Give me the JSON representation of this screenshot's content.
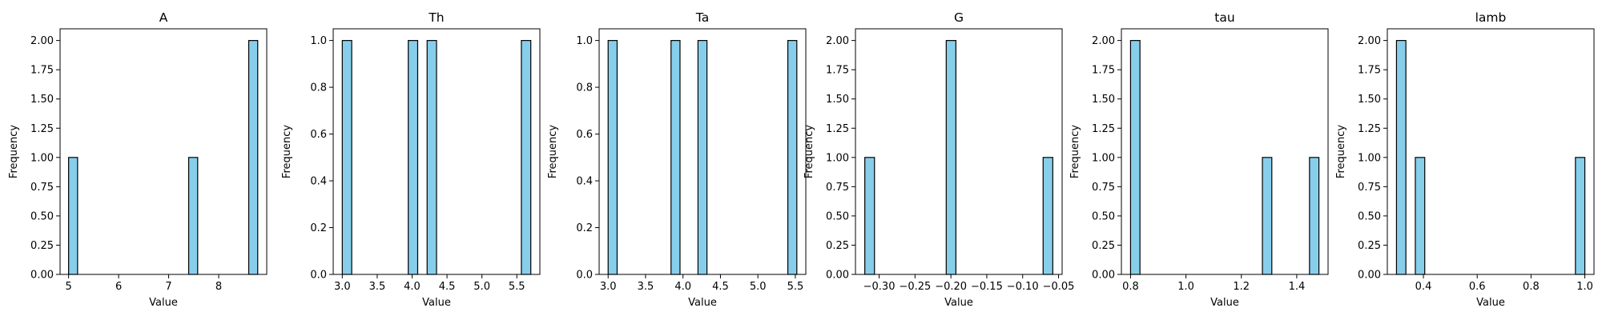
{
  "chart_data": [
    {
      "type": "bar",
      "title": "A",
      "xlabel": "Value",
      "ylabel": "Frequency",
      "bin_width": 0.18,
      "bins": [
        {
          "start": 5.0,
          "count": 1
        },
        {
          "start": 7.4,
          "count": 1
        },
        {
          "start": 8.6,
          "count": 2
        }
      ],
      "xlim": [
        4.83,
        8.96
      ],
      "ylim": [
        0,
        2.1
      ],
      "xticks": [
        {
          "value": 5,
          "label": "5"
        },
        {
          "value": 6,
          "label": "6"
        },
        {
          "value": 7,
          "label": "7"
        },
        {
          "value": 8,
          "label": "8"
        }
      ],
      "yticks": [
        {
          "value": 0,
          "label": "0.00"
        },
        {
          "value": 0.25,
          "label": "0.25"
        },
        {
          "value": 0.5,
          "label": "0.50"
        },
        {
          "value": 0.75,
          "label": "0.75"
        },
        {
          "value": 1.0,
          "label": "1.00"
        },
        {
          "value": 1.25,
          "label": "1.25"
        },
        {
          "value": 1.5,
          "label": "1.50"
        },
        {
          "value": 1.75,
          "label": "1.75"
        },
        {
          "value": 2.0,
          "label": "2.00"
        }
      ],
      "grid": false,
      "bar_color": "#87ceeb",
      "edge_color": "#000000"
    },
    {
      "type": "bar",
      "title": "Th",
      "xlabel": "Value",
      "ylabel": "Frequency",
      "bin_width": 0.135,
      "bins": [
        {
          "start": 3.0,
          "count": 1
        },
        {
          "start": 3.945,
          "count": 1
        },
        {
          "start": 4.215,
          "count": 1
        },
        {
          "start": 5.565,
          "count": 1
        }
      ],
      "xlim": [
        2.87,
        5.83
      ],
      "ylim": [
        0,
        1.05
      ],
      "xticks": [
        {
          "value": 3.0,
          "label": "3.0"
        },
        {
          "value": 3.5,
          "label": "3.5"
        },
        {
          "value": 4.0,
          "label": "4.0"
        },
        {
          "value": 4.5,
          "label": "4.5"
        },
        {
          "value": 5.0,
          "label": "5.0"
        },
        {
          "value": 5.5,
          "label": "5.5"
        }
      ],
      "yticks": [
        {
          "value": 0,
          "label": "0.0"
        },
        {
          "value": 0.2,
          "label": "0.2"
        },
        {
          "value": 0.4,
          "label": "0.4"
        },
        {
          "value": 0.6,
          "label": "0.6"
        },
        {
          "value": 0.8,
          "label": "0.8"
        },
        {
          "value": 1.0,
          "label": "1.0"
        }
      ],
      "grid": false,
      "bar_color": "#87ceeb",
      "edge_color": "#000000"
    },
    {
      "type": "bar",
      "title": "Ta",
      "xlabel": "Value",
      "ylabel": "Frequency",
      "bin_width": 0.12,
      "bins": [
        {
          "start": 3.0,
          "count": 1
        },
        {
          "start": 3.84,
          "count": 1
        },
        {
          "start": 4.2,
          "count": 1
        },
        {
          "start": 5.4,
          "count": 1
        }
      ],
      "xlim": [
        2.88,
        5.64
      ],
      "ylim": [
        0,
        1.05
      ],
      "xticks": [
        {
          "value": 3.0,
          "label": "3.0"
        },
        {
          "value": 3.5,
          "label": "3.5"
        },
        {
          "value": 4.0,
          "label": "4.0"
        },
        {
          "value": 4.5,
          "label": "4.5"
        },
        {
          "value": 5.0,
          "label": "5.0"
        },
        {
          "value": 5.5,
          "label": "5.5"
        }
      ],
      "yticks": [
        {
          "value": 0,
          "label": "0.0"
        },
        {
          "value": 0.2,
          "label": "0.2"
        },
        {
          "value": 0.4,
          "label": "0.4"
        },
        {
          "value": 0.6,
          "label": "0.6"
        },
        {
          "value": 0.8,
          "label": "0.8"
        },
        {
          "value": 1.0,
          "label": "1.0"
        }
      ],
      "grid": false,
      "bar_color": "#87ceeb",
      "edge_color": "#000000"
    },
    {
      "type": "bar",
      "title": "G",
      "xlabel": "Value",
      "ylabel": "Frequency",
      "bin_width": 0.0135,
      "bins": [
        {
          "start": -0.32,
          "count": 1
        },
        {
          "start": -0.2065,
          "count": 2
        },
        {
          "start": -0.0715,
          "count": 1
        }
      ],
      "xlim": [
        -0.333,
        -0.045
      ],
      "ylim": [
        0,
        2.1
      ],
      "xticks": [
        {
          "value": -0.3,
          "label": "−0.30"
        },
        {
          "value": -0.25,
          "label": "−0.25"
        },
        {
          "value": -0.2,
          "label": "−0.20"
        },
        {
          "value": -0.15,
          "label": "−0.15"
        },
        {
          "value": -0.1,
          "label": "−0.10"
        },
        {
          "value": -0.05,
          "label": "−0.05"
        }
      ],
      "yticks": [
        {
          "value": 0,
          "label": "0.00"
        },
        {
          "value": 0.25,
          "label": "0.25"
        },
        {
          "value": 0.5,
          "label": "0.50"
        },
        {
          "value": 0.75,
          "label": "0.75"
        },
        {
          "value": 1.0,
          "label": "1.00"
        },
        {
          "value": 1.25,
          "label": "1.25"
        },
        {
          "value": 1.5,
          "label": "1.50"
        },
        {
          "value": 1.75,
          "label": "1.75"
        },
        {
          "value": 2.0,
          "label": "2.00"
        }
      ],
      "grid": false,
      "bar_color": "#87ceeb",
      "edge_color": "#000000"
    },
    {
      "type": "bar",
      "title": "tau",
      "xlabel": "Value",
      "ylabel": "Frequency",
      "bin_width": 0.034,
      "bins": [
        {
          "start": 0.8,
          "count": 2
        },
        {
          "start": 1.276,
          "count": 1
        },
        {
          "start": 1.446,
          "count": 1
        }
      ],
      "xlim": [
        0.767,
        1.513
      ],
      "ylim": [
        0,
        2.1
      ],
      "xticks": [
        {
          "value": 0.8,
          "label": "0.8"
        },
        {
          "value": 1.0,
          "label": "1.0"
        },
        {
          "value": 1.2,
          "label": "1.2"
        },
        {
          "value": 1.4,
          "label": "1.4"
        }
      ],
      "yticks": [
        {
          "value": 0,
          "label": "0.00"
        },
        {
          "value": 0.25,
          "label": "0.25"
        },
        {
          "value": 0.5,
          "label": "0.50"
        },
        {
          "value": 0.75,
          "label": "0.75"
        },
        {
          "value": 1.0,
          "label": "1.00"
        },
        {
          "value": 1.25,
          "label": "1.25"
        },
        {
          "value": 1.5,
          "label": "1.50"
        },
        {
          "value": 1.75,
          "label": "1.75"
        },
        {
          "value": 2.0,
          "label": "2.00"
        }
      ],
      "grid": false,
      "bar_color": "#87ceeb",
      "edge_color": "#000000"
    },
    {
      "type": "bar",
      "title": "lamb",
      "xlabel": "Value",
      "ylabel": "Frequency",
      "bin_width": 0.035,
      "bins": [
        {
          "start": 0.3,
          "count": 2
        },
        {
          "start": 0.37,
          "count": 1
        },
        {
          "start": 0.965,
          "count": 1
        }
      ],
      "xlim": [
        0.266,
        1.034
      ],
      "ylim": [
        0,
        2.1
      ],
      "xticks": [
        {
          "value": 0.4,
          "label": "0.4"
        },
        {
          "value": 0.6,
          "label": "0.6"
        },
        {
          "value": 0.8,
          "label": "0.8"
        },
        {
          "value": 1.0,
          "label": "1.0"
        }
      ],
      "yticks": [
        {
          "value": 0,
          "label": "0.00"
        },
        {
          "value": 0.25,
          "label": "0.25"
        },
        {
          "value": 0.5,
          "label": "0.50"
        },
        {
          "value": 0.75,
          "label": "0.75"
        },
        {
          "value": 1.0,
          "label": "1.00"
        },
        {
          "value": 1.25,
          "label": "1.25"
        },
        {
          "value": 1.5,
          "label": "1.50"
        },
        {
          "value": 1.75,
          "label": "1.75"
        },
        {
          "value": 2.0,
          "label": "2.00"
        }
      ],
      "grid": false,
      "bar_color": "#87ceeb",
      "edge_color": "#000000"
    }
  ]
}
